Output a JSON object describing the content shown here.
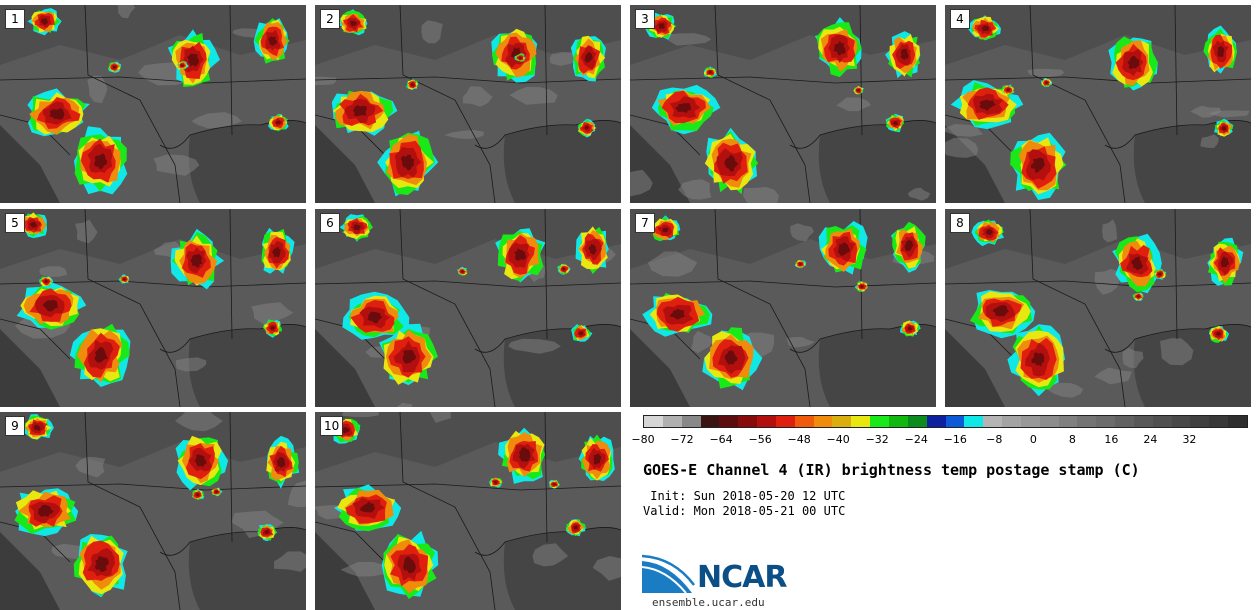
{
  "panels": [
    {
      "label": "1"
    },
    {
      "label": "2"
    },
    {
      "label": "3"
    },
    {
      "label": "4"
    },
    {
      "label": "5"
    },
    {
      "label": "6"
    },
    {
      "label": "7"
    },
    {
      "label": "8"
    },
    {
      "label": "9"
    },
    {
      "label": "10"
    }
  ],
  "colorbar": {
    "colors": [
      "#d6d6d6",
      "#b0b0b0",
      "#888888",
      "#3a1313",
      "#5c0e0e",
      "#870b0b",
      "#b40f0f",
      "#e0200e",
      "#f05a0c",
      "#f08c0c",
      "#dbae10",
      "#e8e810",
      "#19e819",
      "#10b810",
      "#0c8c1e",
      "#0c20a0",
      "#0c5ad8",
      "#10e8e8",
      "#b4b4b4",
      "#a4a4a4",
      "#989898",
      "#8c8c8c",
      "#808080",
      "#747474",
      "#6c6c6c",
      "#626262",
      "#585858",
      "#505050",
      "#484848",
      "#404040",
      "#383838",
      "#2e2e2e"
    ],
    "ticks": [
      "−80",
      "−72",
      "−64",
      "−56",
      "−48",
      "−40",
      "−32",
      "−24",
      "−16",
      "−8",
      "0",
      "8",
      "16",
      "24",
      "32"
    ]
  },
  "title": "GOES-E Channel 4 (IR) brightness temp postage stamp (C)",
  "init": " Init: Sun 2018-05-20 12 UTC",
  "valid": "Valid: Mon 2018-05-21 00 UTC",
  "logo": {
    "text": "NCAR",
    "url": "ensemble.ucar.edu"
  }
}
